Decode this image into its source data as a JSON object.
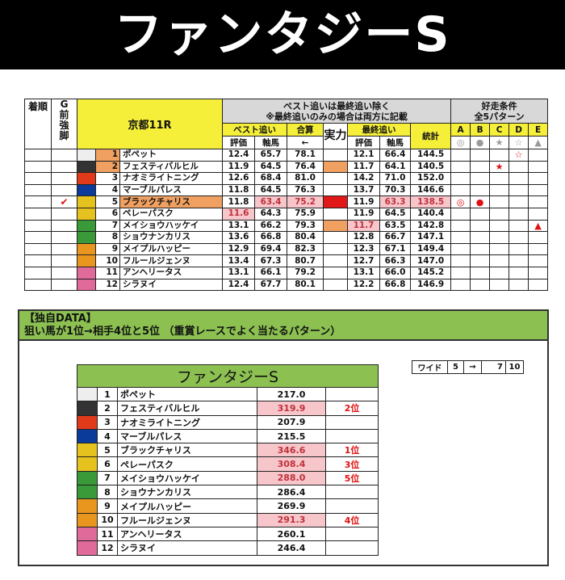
{
  "title": "ファンタジーS",
  "main": {
    "headers": {
      "rank": "着順",
      "g": "G\n前\n強\n脚",
      "race": "京都11R",
      "note1": "ベスト追いは最終追い除く",
      "note2": "※最終追いのみの場合は両方に記載",
      "best": "ベスト追い",
      "total": "合算",
      "jitsu": "実力",
      "last": "最終追い",
      "stat": "統計",
      "eval": "評価",
      "jiku": "軸馬",
      "arrow": "←",
      "cond1": "好走条件",
      "cond2": "全5パターン",
      "patterns": [
        "A",
        "B",
        "C",
        "D",
        "E"
      ],
      "pattern_symbols": [
        "◎",
        "●",
        "★",
        "☆",
        "▲"
      ]
    },
    "rows": [
      {
        "num": "1",
        "name": "ポペット",
        "color": "#eeeeee",
        "b_eval": "12.4",
        "b_jiku": "65.7",
        "sum": "78.1",
        "jitsu": "",
        "l_eval": "12.1",
        "l_jiku": "66.4",
        "stat": "144.5",
        "marks": [
          "",
          "",
          "",
          "☆",
          ""
        ],
        "check": "",
        "hl": [
          "numbg"
        ]
      },
      {
        "num": "2",
        "name": "フェスティバルヒル",
        "color": "#333333",
        "b_eval": "11.9",
        "b_jiku": "64.5",
        "sum": "76.4",
        "jitsu": "#f0a060",
        "l_eval": "11.7",
        "l_jiku": "64.1",
        "stat": "140.5",
        "marks": [
          "",
          "",
          "★",
          "",
          ""
        ],
        "check": "",
        "hl": [
          "numbg"
        ]
      },
      {
        "num": "3",
        "name": "ナオミライトニング",
        "color": "#e03a1a",
        "b_eval": "12.6",
        "b_jiku": "68.4",
        "sum": "81.0",
        "jitsu": "",
        "l_eval": "14.2",
        "l_jiku": "71.0",
        "stat": "152.0",
        "marks": [
          "",
          "",
          "",
          "",
          ""
        ],
        "check": "",
        "hl": []
      },
      {
        "num": "4",
        "name": "マーブルパレス",
        "color": "#0a3a9a",
        "b_eval": "11.8",
        "b_jiku": "64.5",
        "sum": "76.3",
        "jitsu": "",
        "l_eval": "13.7",
        "l_jiku": "70.3",
        "stat": "146.6",
        "marks": [
          "",
          "",
          "",
          "",
          ""
        ],
        "check": "",
        "hl": []
      },
      {
        "num": "5",
        "name": "ブラックチャリス",
        "color": "#e6c21e",
        "b_eval": "11.8",
        "b_jiku": "63.4",
        "sum": "75.2",
        "jitsu": "#e01818",
        "l_eval": "11.9",
        "l_jiku": "63.3",
        "stat": "138.5",
        "marks": [
          "◎",
          "●",
          "",
          "",
          ""
        ],
        "check": "✔",
        "hl": [
          "namebg",
          "b_jiku",
          "sum",
          "l_jiku",
          "stat"
        ]
      },
      {
        "num": "6",
        "name": "ペレーパスク",
        "color": "#e6c21e",
        "b_eval": "11.6",
        "b_jiku": "64.3",
        "sum": "75.9",
        "jitsu": "",
        "l_eval": "11.9",
        "l_jiku": "64.5",
        "stat": "140.4",
        "marks": [
          "",
          "",
          "",
          "",
          ""
        ],
        "check": "",
        "hl": [
          "b_eval"
        ]
      },
      {
        "num": "7",
        "name": "メイショウハッケイ",
        "color": "#3a9a3a",
        "b_eval": "13.1",
        "b_jiku": "66.2",
        "sum": "79.3",
        "jitsu": "#f0a060",
        "l_eval": "11.7",
        "l_jiku": "63.5",
        "stat": "142.8",
        "marks": [
          "",
          "",
          "",
          "",
          "▲"
        ],
        "check": "",
        "hl": [
          "l_eval"
        ]
      },
      {
        "num": "8",
        "name": "ショウナンカリス",
        "color": "#3a9a3a",
        "b_eval": "13.6",
        "b_jiku": "66.8",
        "sum": "80.4",
        "jitsu": "",
        "l_eval": "12.8",
        "l_jiku": "66.7",
        "stat": "147.1",
        "marks": [
          "",
          "",
          "",
          "",
          ""
        ],
        "check": "",
        "hl": []
      },
      {
        "num": "9",
        "name": "メイプルハッピー",
        "color": "#e8961e",
        "b_eval": "12.9",
        "b_jiku": "69.4",
        "sum": "82.3",
        "jitsu": "",
        "l_eval": "12.3",
        "l_jiku": "67.1",
        "stat": "149.4",
        "marks": [
          "",
          "",
          "",
          "",
          ""
        ],
        "check": "",
        "hl": []
      },
      {
        "num": "10",
        "name": "フルールジェンヌ",
        "color": "#e8961e",
        "b_eval": "13.4",
        "b_jiku": "67.3",
        "sum": "80.7",
        "jitsu": "",
        "l_eval": "12.7",
        "l_jiku": "66.3",
        "stat": "147.0",
        "marks": [
          "",
          "",
          "",
          "",
          ""
        ],
        "check": "",
        "hl": []
      },
      {
        "num": "11",
        "name": "アンヘリータス",
        "color": "#e06a9a",
        "b_eval": "13.1",
        "b_jiku": "66.1",
        "sum": "79.2",
        "jitsu": "",
        "l_eval": "13.1",
        "l_jiku": "66.0",
        "stat": "145.2",
        "marks": [
          "",
          "",
          "",
          "",
          ""
        ],
        "check": "",
        "hl": []
      },
      {
        "num": "12",
        "name": "シラヌイ",
        "color": "#e06a9a",
        "b_eval": "12.4",
        "b_jiku": "67.7",
        "sum": "80.1",
        "jitsu": "",
        "l_eval": "12.2",
        "l_jiku": "66.8",
        "stat": "146.9",
        "marks": [
          "",
          "",
          "",
          "",
          ""
        ],
        "check": "",
        "hl": []
      }
    ]
  },
  "data_section": {
    "heading1": "【独自DATA】",
    "heading2": "狙い馬が1位→相手4位と5位 （重賞レースでよく当たるパターン）",
    "table_title": "ファンタジーS",
    "rows": [
      {
        "num": "1",
        "name": "ポペット",
        "value": "217.0",
        "rank": "",
        "hl": false
      },
      {
        "num": "2",
        "name": "フェスティバルヒル",
        "value": "319.9",
        "rank": "2位",
        "hl": true
      },
      {
        "num": "3",
        "name": "ナオミライトニング",
        "value": "207.9",
        "rank": "",
        "hl": false
      },
      {
        "num": "4",
        "name": "マーブルパレス",
        "value": "215.5",
        "rank": "",
        "hl": false
      },
      {
        "num": "5",
        "name": "ブラックチャリス",
        "value": "346.6",
        "rank": "1位",
        "hl": true
      },
      {
        "num": "6",
        "name": "ペレーパスク",
        "value": "308.4",
        "rank": "3位",
        "hl": true
      },
      {
        "num": "7",
        "name": "メイショウハッケイ",
        "value": "288.0",
        "rank": "5位",
        "hl": true
      },
      {
        "num": "8",
        "name": "ショウナンカリス",
        "value": "286.4",
        "rank": "",
        "hl": false
      },
      {
        "num": "9",
        "name": "メイプルハッピー",
        "value": "269.9",
        "rank": "",
        "hl": false
      },
      {
        "num": "10",
        "name": "フルールジェンヌ",
        "value": "291.3",
        "rank": "4位",
        "hl": true
      },
      {
        "num": "11",
        "name": "アンヘリータス",
        "value": "260.1",
        "rank": "",
        "hl": false
      },
      {
        "num": "12",
        "name": "シラヌイ",
        "value": "246.4",
        "rank": "",
        "hl": false
      }
    ],
    "wide": {
      "label": "ワイド",
      "from": "5",
      "arrow": "→",
      "to1": "7",
      "to2": "10"
    }
  }
}
